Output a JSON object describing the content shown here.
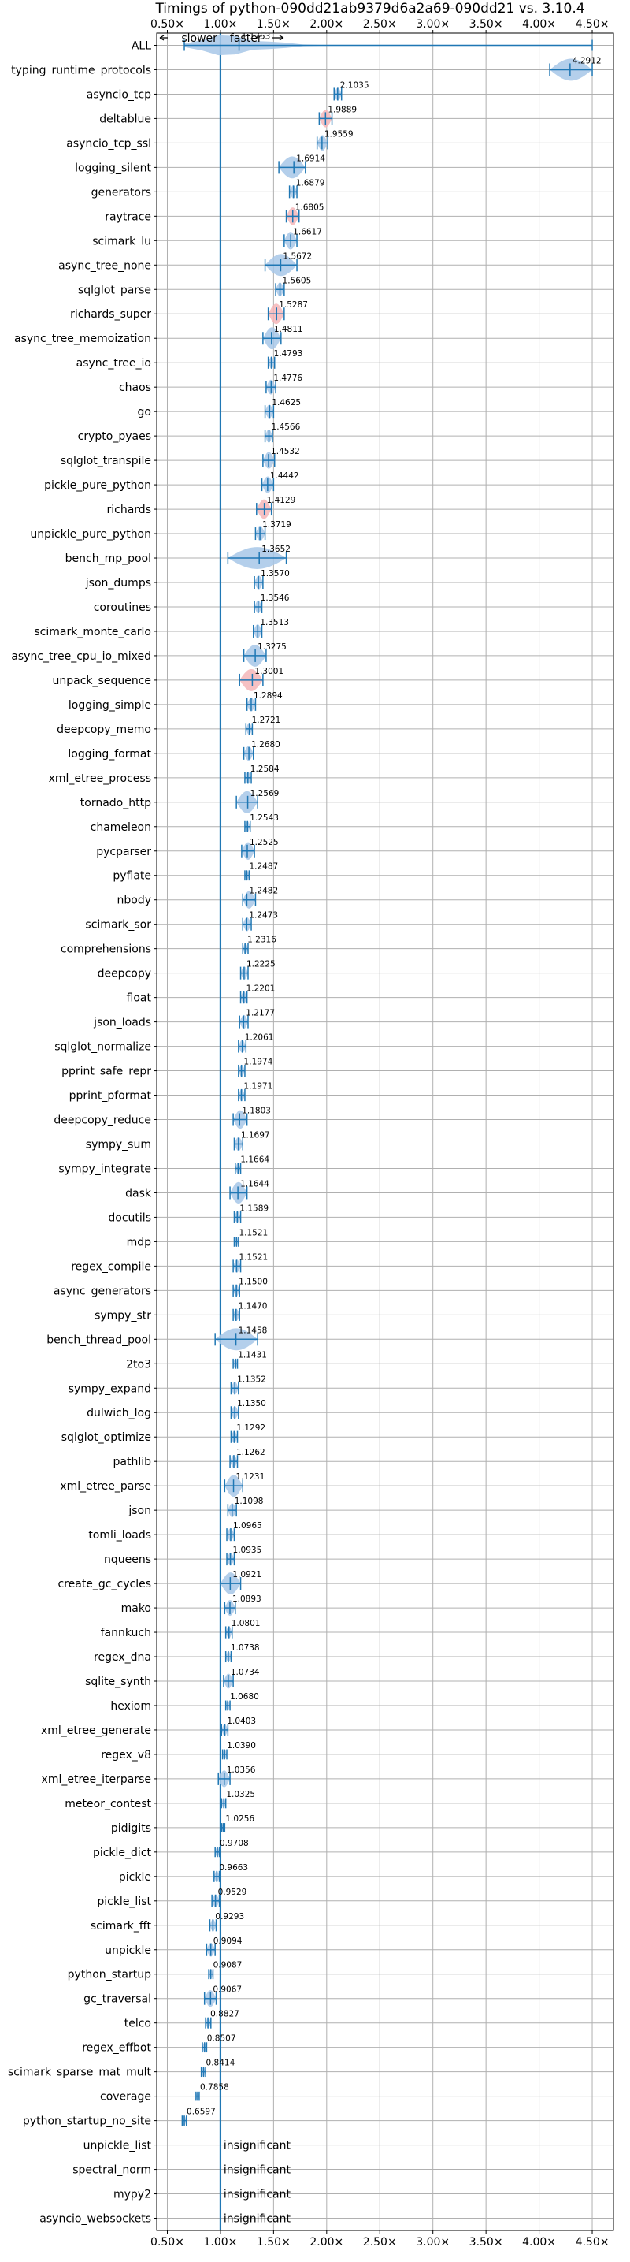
{
  "chart_data": {
    "type": "violin",
    "title": "Timings of python-090dd21ab9379d6a2a69-090dd21 vs. 3.10.4",
    "xlim": [
      0.4,
      4.7
    ],
    "xticks": [
      0.5,
      1.0,
      1.5,
      2.0,
      2.5,
      3.0,
      3.5,
      4.0,
      4.5
    ],
    "xtick_labels": [
      "0.50×",
      "1.00×",
      "1.50×",
      "2.00×",
      "2.50×",
      "3.00×",
      "3.50×",
      "4.00×",
      "4.50×"
    ],
    "reference_line": 1.0,
    "legend": {
      "slower": "slower",
      "faster": "faster"
    },
    "insignificant_label": "insignificant",
    "colors": {
      "violin_blue": "#a7c7e7",
      "violin_pink": "#f4b6b9",
      "stroke": "#1f77b4",
      "grid": "#b0b0b0"
    },
    "benchmarks": [
      {
        "name": "ALL",
        "value": 1.1753,
        "label": "1.1753",
        "min": 0.6597,
        "max": 4.5
      },
      {
        "name": "typing_runtime_protocols",
        "value": 4.2912,
        "label": "4.2912",
        "min": 4.1,
        "max": 4.5
      },
      {
        "name": "asyncio_tcp",
        "value": 2.1035,
        "label": "2.1035",
        "min": 2.07,
        "max": 2.14
      },
      {
        "name": "deltablue",
        "value": 1.9889,
        "label": "1.9889",
        "min": 1.93,
        "max": 2.05,
        "pink": true
      },
      {
        "name": "asyncio_tcp_ssl",
        "value": 1.9559,
        "label": "1.9559",
        "min": 1.91,
        "max": 2.01
      },
      {
        "name": "logging_silent",
        "value": 1.6914,
        "label": "1.6914",
        "min": 1.55,
        "max": 1.8
      },
      {
        "name": "generators",
        "value": 1.6879,
        "label": "1.6879",
        "min": 1.65,
        "max": 1.72
      },
      {
        "name": "raytrace",
        "value": 1.6805,
        "label": "1.6805",
        "min": 1.62,
        "max": 1.74,
        "pink": true
      },
      {
        "name": "scimark_lu",
        "value": 1.6617,
        "label": "1.6617",
        "min": 1.6,
        "max": 1.72
      },
      {
        "name": "async_tree_none",
        "value": 1.5672,
        "label": "1.5672",
        "min": 1.42,
        "max": 1.72
      },
      {
        "name": "sqlglot_parse",
        "value": 1.5605,
        "label": "1.5605",
        "min": 1.52,
        "max": 1.6
      },
      {
        "name": "richards_super",
        "value": 1.5287,
        "label": "1.5287",
        "min": 1.45,
        "max": 1.6,
        "pink": true
      },
      {
        "name": "async_tree_memoization",
        "value": 1.4811,
        "label": "1.4811",
        "min": 1.4,
        "max": 1.57
      },
      {
        "name": "async_tree_io",
        "value": 1.4793,
        "label": "1.4793",
        "min": 1.45,
        "max": 1.51
      },
      {
        "name": "chaos",
        "value": 1.4776,
        "label": "1.4776",
        "min": 1.43,
        "max": 1.52
      },
      {
        "name": "go",
        "value": 1.4625,
        "label": "1.4625",
        "min": 1.42,
        "max": 1.5
      },
      {
        "name": "crypto_pyaes",
        "value": 1.4566,
        "label": "1.4566",
        "min": 1.42,
        "max": 1.49
      },
      {
        "name": "sqlglot_transpile",
        "value": 1.4532,
        "label": "1.4532",
        "min": 1.4,
        "max": 1.51
      },
      {
        "name": "pickle_pure_python",
        "value": 1.4442,
        "label": "1.4442",
        "min": 1.39,
        "max": 1.5
      },
      {
        "name": "richards",
        "value": 1.4129,
        "label": "1.4129",
        "min": 1.34,
        "max": 1.48,
        "pink": true
      },
      {
        "name": "unpickle_pure_python",
        "value": 1.3719,
        "label": "1.3719",
        "min": 1.33,
        "max": 1.42
      },
      {
        "name": "bench_mp_pool",
        "value": 1.3652,
        "label": "1.3652",
        "min": 1.07,
        "max": 1.62
      },
      {
        "name": "json_dumps",
        "value": 1.357,
        "label": "1.3570",
        "min": 1.32,
        "max": 1.4
      },
      {
        "name": "coroutines",
        "value": 1.3546,
        "label": "1.3546",
        "min": 1.32,
        "max": 1.39
      },
      {
        "name": "scimark_monte_carlo",
        "value": 1.3513,
        "label": "1.3513",
        "min": 1.31,
        "max": 1.39
      },
      {
        "name": "async_tree_cpu_io_mixed",
        "value": 1.3275,
        "label": "1.3275",
        "min": 1.22,
        "max": 1.43
      },
      {
        "name": "unpack_sequence",
        "value": 1.3001,
        "label": "1.3001",
        "min": 1.18,
        "max": 1.4,
        "pink": true
      },
      {
        "name": "logging_simple",
        "value": 1.2894,
        "label": "1.2894",
        "min": 1.25,
        "max": 1.33
      },
      {
        "name": "deepcopy_memo",
        "value": 1.2721,
        "label": "1.2721",
        "min": 1.24,
        "max": 1.3
      },
      {
        "name": "logging_format",
        "value": 1.268,
        "label": "1.2680",
        "min": 1.22,
        "max": 1.31
      },
      {
        "name": "xml_etree_process",
        "value": 1.2584,
        "label": "1.2584",
        "min": 1.23,
        "max": 1.29
      },
      {
        "name": "tornado_http",
        "value": 1.2569,
        "label": "1.2569",
        "min": 1.15,
        "max": 1.35
      },
      {
        "name": "chameleon",
        "value": 1.2543,
        "label": "1.2543",
        "min": 1.23,
        "max": 1.28
      },
      {
        "name": "pycparser",
        "value": 1.2525,
        "label": "1.2525",
        "min": 1.2,
        "max": 1.32
      },
      {
        "name": "pyflate",
        "value": 1.2487,
        "label": "1.2487",
        "min": 1.23,
        "max": 1.27
      },
      {
        "name": "nbody",
        "value": 1.2482,
        "label": "1.2482",
        "min": 1.21,
        "max": 1.33
      },
      {
        "name": "scimark_sor",
        "value": 1.2473,
        "label": "1.2473",
        "min": 1.21,
        "max": 1.29
      },
      {
        "name": "comprehensions",
        "value": 1.2316,
        "label": "1.2316",
        "min": 1.21,
        "max": 1.26
      },
      {
        "name": "deepcopy",
        "value": 1.2225,
        "label": "1.2225",
        "min": 1.19,
        "max": 1.26
      },
      {
        "name": "float",
        "value": 1.2201,
        "label": "1.2201",
        "min": 1.19,
        "max": 1.25
      },
      {
        "name": "json_loads",
        "value": 1.2177,
        "label": "1.2177",
        "min": 1.18,
        "max": 1.26
      },
      {
        "name": "sqlglot_normalize",
        "value": 1.2061,
        "label": "1.2061",
        "min": 1.17,
        "max": 1.24
      },
      {
        "name": "pprint_safe_repr",
        "value": 1.1974,
        "label": "1.1974",
        "min": 1.17,
        "max": 1.23
      },
      {
        "name": "pprint_pformat",
        "value": 1.1971,
        "label": "1.1971",
        "min": 1.17,
        "max": 1.23
      },
      {
        "name": "deepcopy_reduce",
        "value": 1.1803,
        "label": "1.1803",
        "min": 1.12,
        "max": 1.25
      },
      {
        "name": "sympy_sum",
        "value": 1.1697,
        "label": "1.1697",
        "min": 1.13,
        "max": 1.21
      },
      {
        "name": "sympy_integrate",
        "value": 1.1664,
        "label": "1.1664",
        "min": 1.14,
        "max": 1.19
      },
      {
        "name": "dask",
        "value": 1.1644,
        "label": "1.1644",
        "min": 1.09,
        "max": 1.25
      },
      {
        "name": "docutils",
        "value": 1.1589,
        "label": "1.1589",
        "min": 1.13,
        "max": 1.19
      },
      {
        "name": "mdp",
        "value": 1.1521,
        "label": "1.1521",
        "min": 1.13,
        "max": 1.17
      },
      {
        "name": "regex_compile",
        "value": 1.1521,
        "label": "1.1521",
        "min": 1.12,
        "max": 1.19
      },
      {
        "name": "async_generators",
        "value": 1.15,
        "label": "1.1500",
        "min": 1.12,
        "max": 1.18
      },
      {
        "name": "sympy_str",
        "value": 1.147,
        "label": "1.1470",
        "min": 1.12,
        "max": 1.18
      },
      {
        "name": "bench_thread_pool",
        "value": 1.1458,
        "label": "1.1458",
        "min": 0.95,
        "max": 1.35
      },
      {
        "name": "2to3",
        "value": 1.1431,
        "label": "1.1431",
        "min": 1.12,
        "max": 1.16
      },
      {
        "name": "sympy_expand",
        "value": 1.1352,
        "label": "1.1352",
        "min": 1.1,
        "max": 1.17
      },
      {
        "name": "dulwich_log",
        "value": 1.135,
        "label": "1.1350",
        "min": 1.1,
        "max": 1.17
      },
      {
        "name": "sqlglot_optimize",
        "value": 1.1292,
        "label": "1.1292",
        "min": 1.1,
        "max": 1.16
      },
      {
        "name": "pathlib",
        "value": 1.1262,
        "label": "1.1262",
        "min": 1.09,
        "max": 1.16
      },
      {
        "name": "xml_etree_parse",
        "value": 1.1231,
        "label": "1.1231",
        "min": 1.04,
        "max": 1.21
      },
      {
        "name": "json",
        "value": 1.1098,
        "label": "1.1098",
        "min": 1.07,
        "max": 1.15
      },
      {
        "name": "tomli_loads",
        "value": 1.0965,
        "label": "1.0965",
        "min": 1.06,
        "max": 1.13
      },
      {
        "name": "nqueens",
        "value": 1.0935,
        "label": "1.0935",
        "min": 1.06,
        "max": 1.13
      },
      {
        "name": "create_gc_cycles",
        "value": 1.0921,
        "label": "1.0921",
        "min": 1.0,
        "max": 1.19
      },
      {
        "name": "mako",
        "value": 1.0893,
        "label": "1.0893",
        "min": 1.04,
        "max": 1.14
      },
      {
        "name": "fannkuch",
        "value": 1.0801,
        "label": "1.0801",
        "min": 1.05,
        "max": 1.11
      },
      {
        "name": "regex_dna",
        "value": 1.0738,
        "label": "1.0738",
        "min": 1.05,
        "max": 1.1
      },
      {
        "name": "sqlite_synth",
        "value": 1.0734,
        "label": "1.0734",
        "min": 1.03,
        "max": 1.12
      },
      {
        "name": "hexiom",
        "value": 1.068,
        "label": "1.0680",
        "min": 1.05,
        "max": 1.09
      },
      {
        "name": "xml_etree_generate",
        "value": 1.0403,
        "label": "1.0403",
        "min": 1.01,
        "max": 1.07
      },
      {
        "name": "regex_v8",
        "value": 1.039,
        "label": "1.0390",
        "min": 1.02,
        "max": 1.06
      },
      {
        "name": "xml_etree_iterparse",
        "value": 1.0356,
        "label": "1.0356",
        "min": 0.98,
        "max": 1.09
      },
      {
        "name": "meteor_contest",
        "value": 1.0325,
        "label": "1.0325",
        "min": 1.01,
        "max": 1.05
      },
      {
        "name": "pidigits",
        "value": 1.0256,
        "label": "1.0256",
        "min": 1.01,
        "max": 1.04
      },
      {
        "name": "pickle_dict",
        "value": 0.9708,
        "label": "0.9708",
        "min": 0.95,
        "max": 0.99
      },
      {
        "name": "pickle",
        "value": 0.9663,
        "label": "0.9663",
        "min": 0.94,
        "max": 0.99
      },
      {
        "name": "pickle_list",
        "value": 0.9529,
        "label": "0.9529",
        "min": 0.92,
        "max": 0.99
      },
      {
        "name": "scimark_fft",
        "value": 0.9293,
        "label": "0.9293",
        "min": 0.9,
        "max": 0.96
      },
      {
        "name": "unpickle",
        "value": 0.9094,
        "label": "0.9094",
        "min": 0.87,
        "max": 0.95
      },
      {
        "name": "python_startup",
        "value": 0.9087,
        "label": "0.9087",
        "min": 0.89,
        "max": 0.93
      },
      {
        "name": "gc_traversal",
        "value": 0.9067,
        "label": "0.9067",
        "min": 0.85,
        "max": 0.96
      },
      {
        "name": "telco",
        "value": 0.8827,
        "label": "0.8827",
        "min": 0.86,
        "max": 0.91
      },
      {
        "name": "regex_effbot",
        "value": 0.8507,
        "label": "0.8507",
        "min": 0.83,
        "max": 0.87
      },
      {
        "name": "scimark_sparse_mat_mult",
        "value": 0.8414,
        "label": "0.8414",
        "min": 0.82,
        "max": 0.86
      },
      {
        "name": "coverage",
        "value": 0.7858,
        "label": "0.7858",
        "min": 0.77,
        "max": 0.8
      },
      {
        "name": "python_startup_no_site",
        "value": 0.6597,
        "label": "0.6597",
        "min": 0.64,
        "max": 0.68
      },
      {
        "name": "unpickle_list",
        "insignificant": true
      },
      {
        "name": "spectral_norm",
        "insignificant": true
      },
      {
        "name": "mypy2",
        "insignificant": true
      },
      {
        "name": "asyncio_websockets",
        "insignificant": true
      }
    ]
  }
}
